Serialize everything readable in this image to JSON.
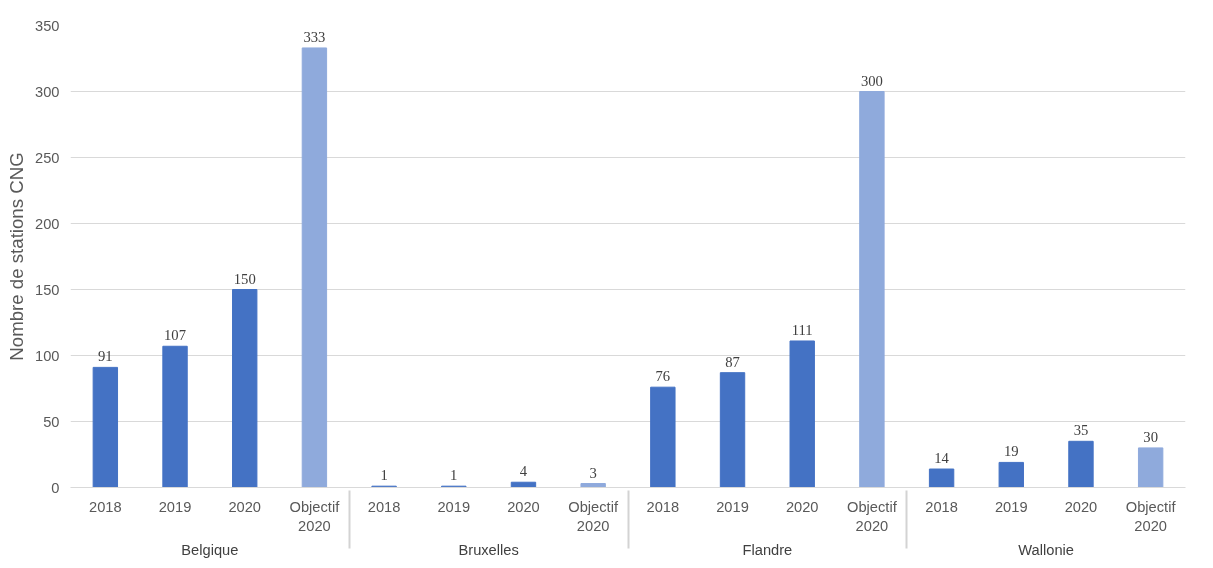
{
  "chart_data": {
    "type": "bar",
    "ylabel": "Nombre de stations CNG",
    "categories": [
      "2018",
      "2019",
      "2020",
      "Objectif 2020",
      "2018",
      "2019",
      "2020",
      "Objectif 2020",
      "2018",
      "2019",
      "2020",
      "Objectif 2020",
      "2018",
      "2019",
      "2020",
      "Objectif 2020"
    ],
    "values": [
      91,
      107,
      150,
      333,
      1,
      1,
      4,
      3,
      76,
      87,
      111,
      300,
      14,
      19,
      35,
      30
    ],
    "colors": [
      "#4472c4",
      "#4472c4",
      "#4472c4",
      "#8faadc",
      "#4472c4",
      "#4472c4",
      "#4472c4",
      "#8faadc",
      "#4472c4",
      "#4472c4",
      "#4472c4",
      "#8faadc",
      "#4472c4",
      "#4472c4",
      "#4472c4",
      "#8faadc"
    ],
    "annotations": [
      "Belgique",
      "Bruxelles",
      "Flandre",
      "Wallonie"
    ],
    "ylim": [
      0,
      350
    ],
    "yticks": [
      0,
      50,
      100,
      150,
      200,
      250,
      300,
      350
    ],
    "grid": "y",
    "data_labels": true
  }
}
